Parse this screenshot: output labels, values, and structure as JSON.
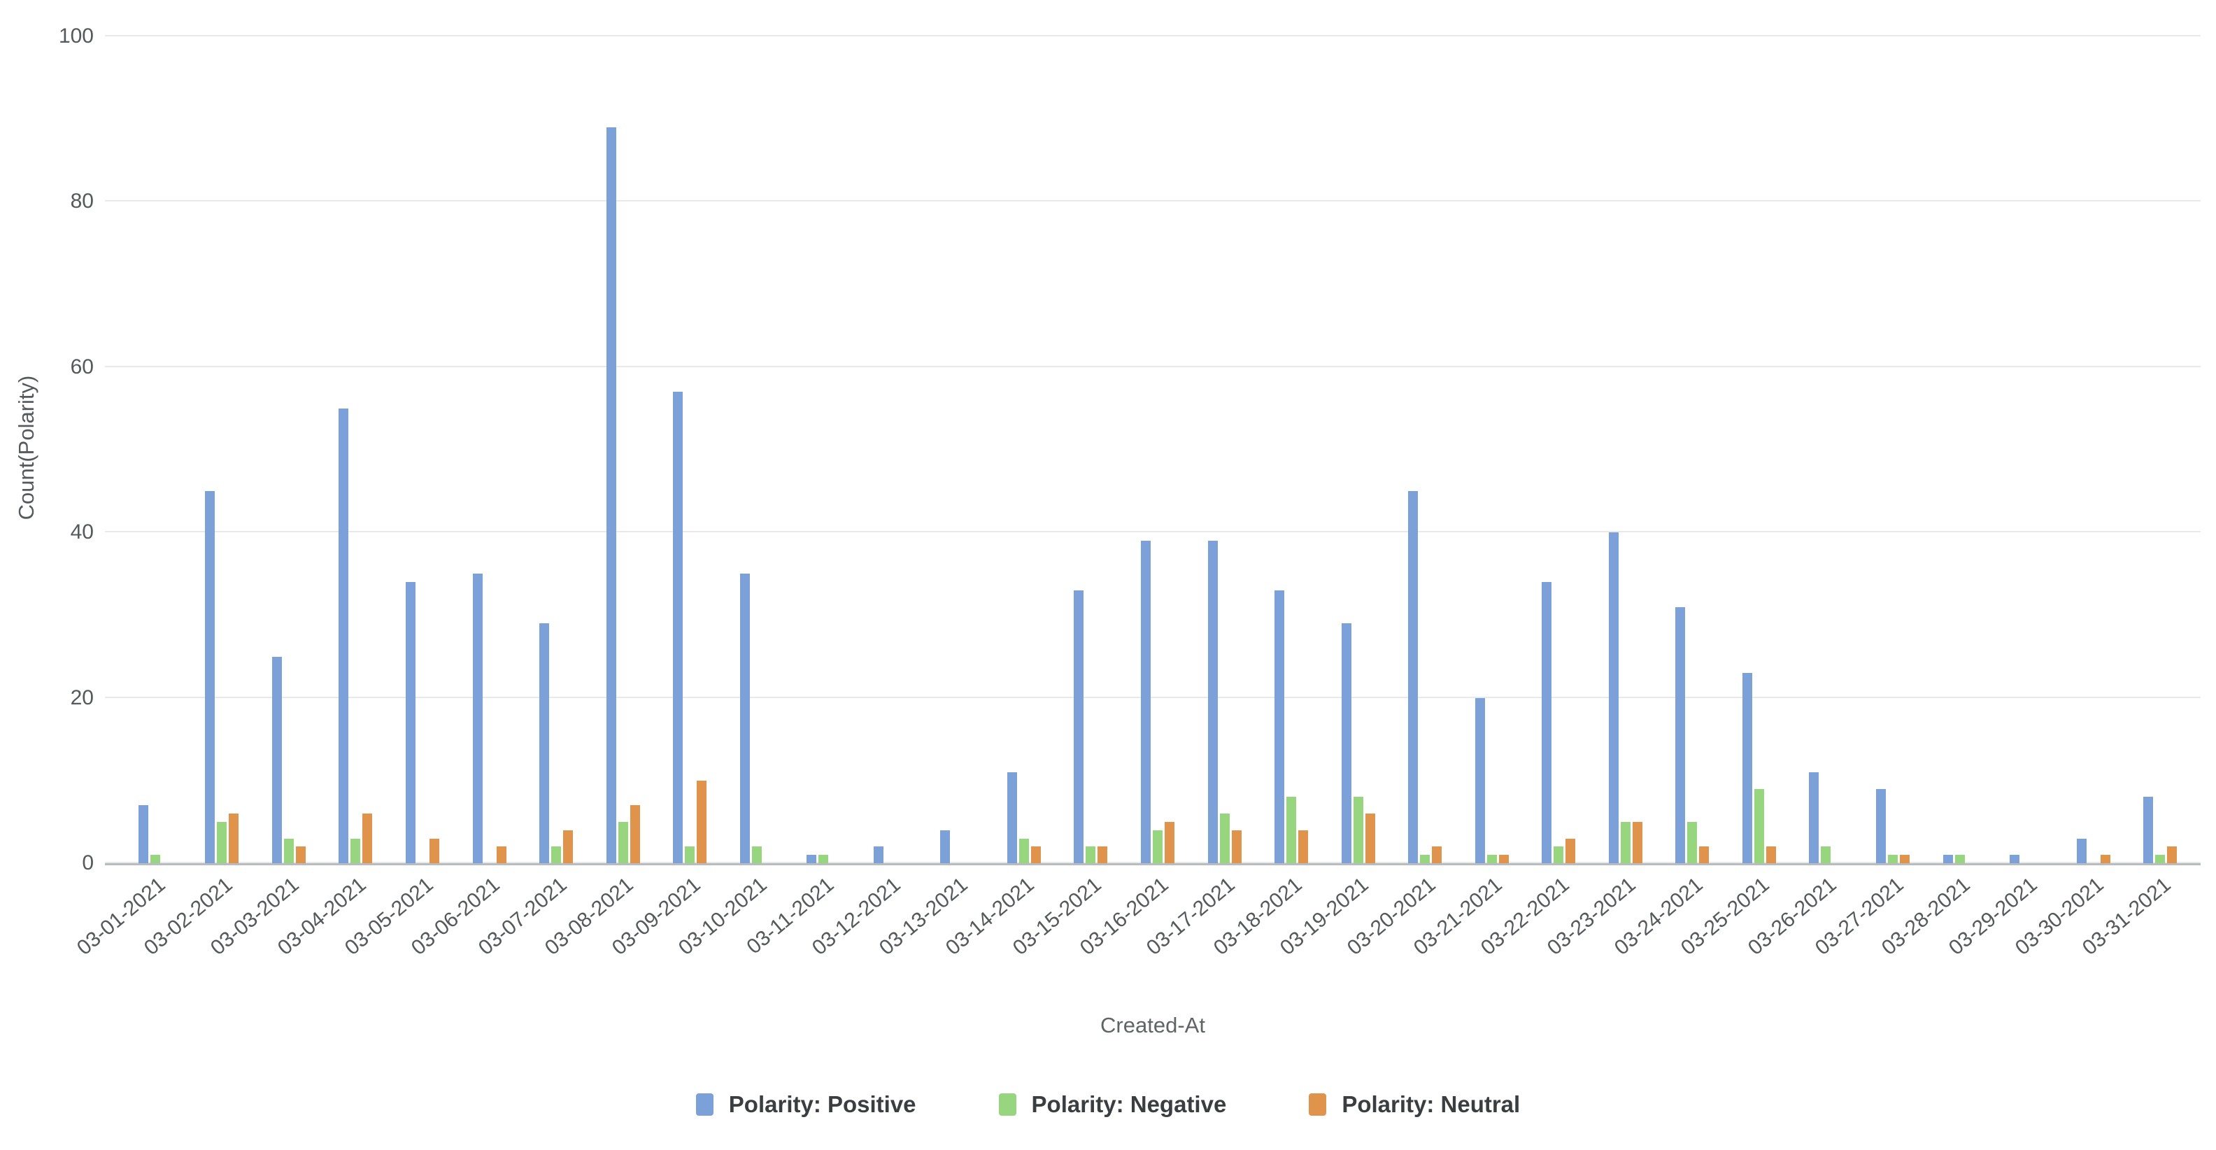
{
  "chart_data": {
    "type": "bar",
    "title": "",
    "xlabel": "Created-At",
    "ylabel": "Count(Polarity)",
    "ylim": [
      0,
      100
    ],
    "ytick_step": 20,
    "grid": true,
    "legend_position": "bottom",
    "categories": [
      "03-01-2021",
      "03-02-2021",
      "03-03-2021",
      "03-04-2021",
      "03-05-2021",
      "03-06-2021",
      "03-07-2021",
      "03-08-2021",
      "03-09-2021",
      "03-10-2021",
      "03-11-2021",
      "03-12-2021",
      "03-13-2021",
      "03-14-2021",
      "03-15-2021",
      "03-16-2021",
      "03-17-2021",
      "03-18-2021",
      "03-19-2021",
      "03-20-2021",
      "03-21-2021",
      "03-22-2021",
      "03-23-2021",
      "03-24-2021",
      "03-25-2021",
      "03-26-2021",
      "03-27-2021",
      "03-28-2021",
      "03-29-2021",
      "03-30-2021",
      "03-31-2021"
    ],
    "series": [
      {
        "name": "Polarity: Positive",
        "color": "#7ca0d8",
        "values": [
          7,
          45,
          25,
          55,
          34,
          35,
          29,
          89,
          57,
          35,
          1,
          2,
          4,
          11,
          33,
          39,
          39,
          33,
          29,
          45,
          20,
          34,
          40,
          31,
          23,
          11,
          9,
          1,
          1,
          3,
          8
        ]
      },
      {
        "name": "Polarity: Negative",
        "color": "#97d57f",
        "values": [
          1,
          5,
          3,
          3,
          0,
          0,
          2,
          5,
          2,
          2,
          1,
          0,
          0,
          3,
          2,
          4,
          6,
          8,
          8,
          1,
          1,
          2,
          5,
          5,
          9,
          2,
          1,
          1,
          0,
          0,
          1
        ]
      },
      {
        "name": "Polarity: Neutral",
        "color": "#e0944b",
        "values": [
          0,
          6,
          2,
          6,
          3,
          2,
          4,
          7,
          10,
          0,
          0,
          0,
          0,
          2,
          2,
          5,
          4,
          4,
          6,
          2,
          1,
          3,
          5,
          2,
          2,
          0,
          1,
          0,
          0,
          1,
          2
        ]
      }
    ]
  },
  "y_axis": {
    "title": "Count(Polarity)",
    "ticks": [
      0,
      20,
      40,
      60,
      80,
      100
    ]
  },
  "x_axis": {
    "title": "Created-At"
  }
}
